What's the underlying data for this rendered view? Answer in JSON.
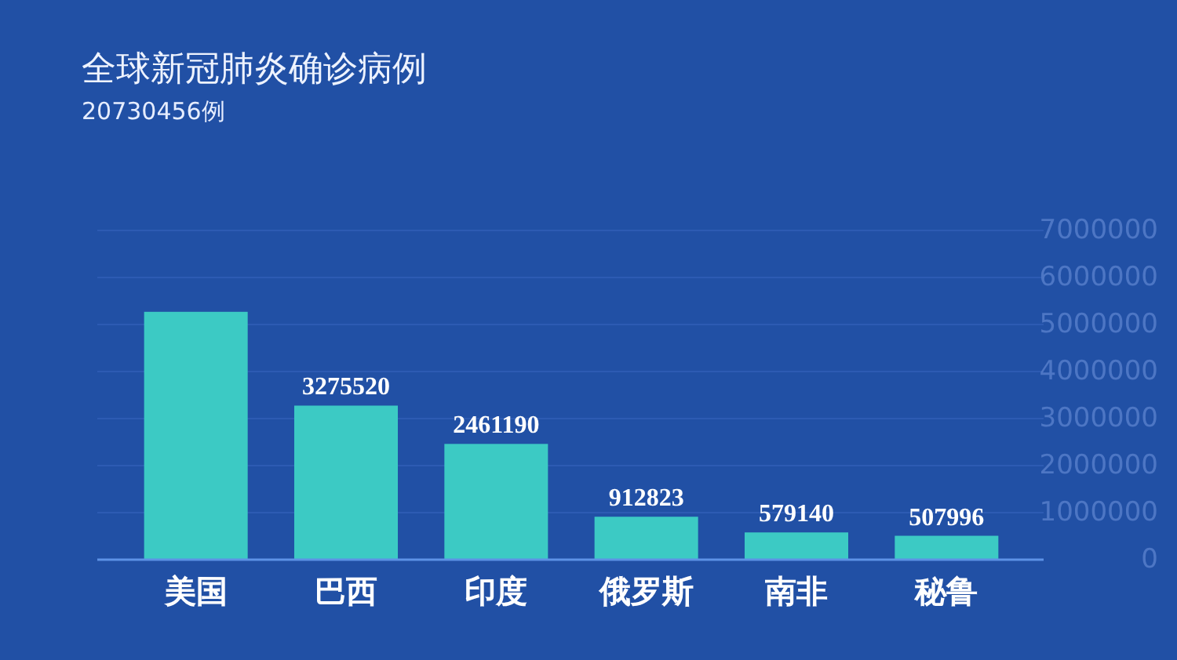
{
  "chart_data": {
    "type": "bar",
    "title": "全球新冠肺炎确诊病例",
    "subtitle": "20730456例",
    "categories": [
      "美国",
      "巴西",
      "印度",
      "俄罗斯",
      "南非",
      "秘鲁"
    ],
    "values": [
      5270000,
      3275520,
      2461190,
      912823,
      579140,
      507996
    ],
    "value_labels": [
      null,
      "3275520",
      "2461190",
      "912823",
      "579140",
      "507996"
    ],
    "color": "#3ccac4",
    "ylim": [
      0,
      7000000
    ],
    "yticks": [
      0,
      1000000,
      2000000,
      3000000,
      4000000,
      5000000,
      6000000,
      7000000
    ],
    "grid": "y"
  }
}
